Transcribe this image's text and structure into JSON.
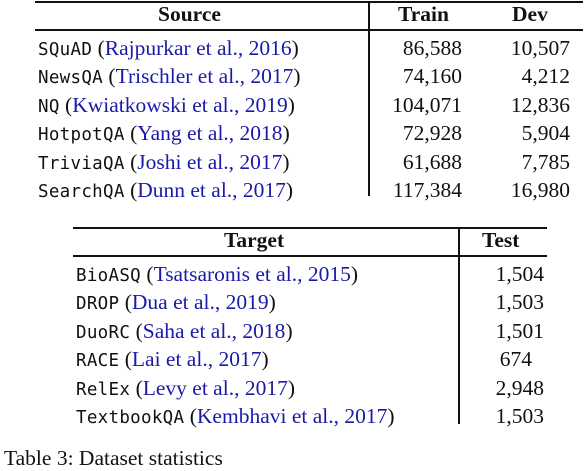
{
  "source_table": {
    "headers": [
      "Source",
      "Train",
      "Dev"
    ],
    "rows": [
      {
        "dataset": "SQuAD",
        "citation": "Rajpurkar et al., 2016",
        "train": "86,588",
        "dev": "10,507"
      },
      {
        "dataset": "NewsQA",
        "citation": "Trischler et al., 2017",
        "train": "74,160",
        "dev": "4,212"
      },
      {
        "dataset": "NQ",
        "citation": "Kwiatkowski et al., 2019",
        "train": "104,071",
        "dev": "12,836"
      },
      {
        "dataset": "HotpotQA",
        "citation": "Yang et al., 2018",
        "train": "72,928",
        "dev": "5,904"
      },
      {
        "dataset": "TriviaQA",
        "citation": "Joshi et al., 2017",
        "train": "61,688",
        "dev": "7,785"
      },
      {
        "dataset": "SearchQA",
        "citation": "Dunn et al., 2017",
        "train": "117,384",
        "dev": "16,980"
      }
    ]
  },
  "target_table": {
    "headers": [
      "Target",
      "Test"
    ],
    "rows": [
      {
        "dataset": "BioASQ",
        "citation": "Tsatsaronis et al., 2015",
        "test": "1,504"
      },
      {
        "dataset": "DROP",
        "citation": "Dua et al., 2019",
        "test": "1,503"
      },
      {
        "dataset": "DuoRC",
        "citation": "Saha et al., 2018",
        "test": "1,501"
      },
      {
        "dataset": "RACE",
        "citation": "Lai et al., 2017",
        "test": "674"
      },
      {
        "dataset": "RelEx",
        "citation": "Levy et al., 2017",
        "test": "2,948"
      },
      {
        "dataset": "TextbookQA",
        "citation": "Kembhavi et al., 2017",
        "test": "1,503"
      }
    ]
  },
  "caption": {
    "text": "Table 3: Dataset statistics"
  }
}
